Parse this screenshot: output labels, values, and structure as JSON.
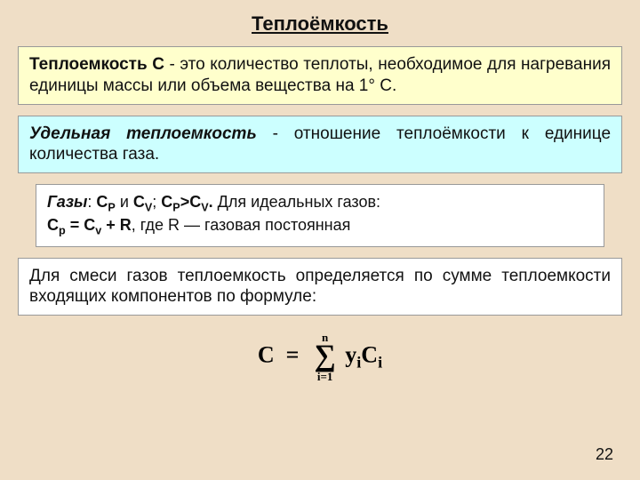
{
  "colors": {
    "page_bg": "#efdec6",
    "box_yellow": "#ffffcc",
    "box_cyan": "#ccffff",
    "box_white": "#ffffff",
    "border": "#999999",
    "text": "#111111"
  },
  "title": "Теплоёмкость",
  "paragraphs": {
    "def_lead_bold": "Теплоемкость С",
    "def_rest": " - это количество теплоты, необходимое для нагревания единицы массы или объема вещества на 1° С.",
    "specific_lead_bi": "Удельная теплоемкость",
    "specific_rest": " - отношение теплоёмкости к единице количества газа.",
    "gases_label": "Газы",
    "gases_colon": ": ",
    "gases_c1": "C",
    "gases_sub_p": "P",
    "gases_and": " и ",
    "gases_c2": "C",
    "gases_sub_v": "V",
    "gases_sep": "; ",
    "gases_rel_l": "C",
    "gases_rel_gt": ">",
    "gases_rel_r": "C",
    "gases_dot": ".",
    "gases_tail": " Для идеальных газов:",
    "gases_line2_lead": "C",
    "gases_line2_sub_p": "p",
    "gases_line2_eq": " = ",
    "gases_line2_cv": "C",
    "gases_line2_sub_v": "v",
    "gases_line2_plus": " + R",
    "gases_line2_rest": ", где R — газовая постоянная",
    "mixture": "Для смеси газов теплоемкость определяется по сумме теплоемкости входящих компонентов по формуле:"
  },
  "formula": {
    "lhs": "C",
    "eq": "=",
    "sum_top": "n",
    "sum_bottom": "i=1",
    "term_y": "y",
    "term_sub1": "i",
    "term_c": "C",
    "term_sub2": "i"
  },
  "page_number": "22"
}
